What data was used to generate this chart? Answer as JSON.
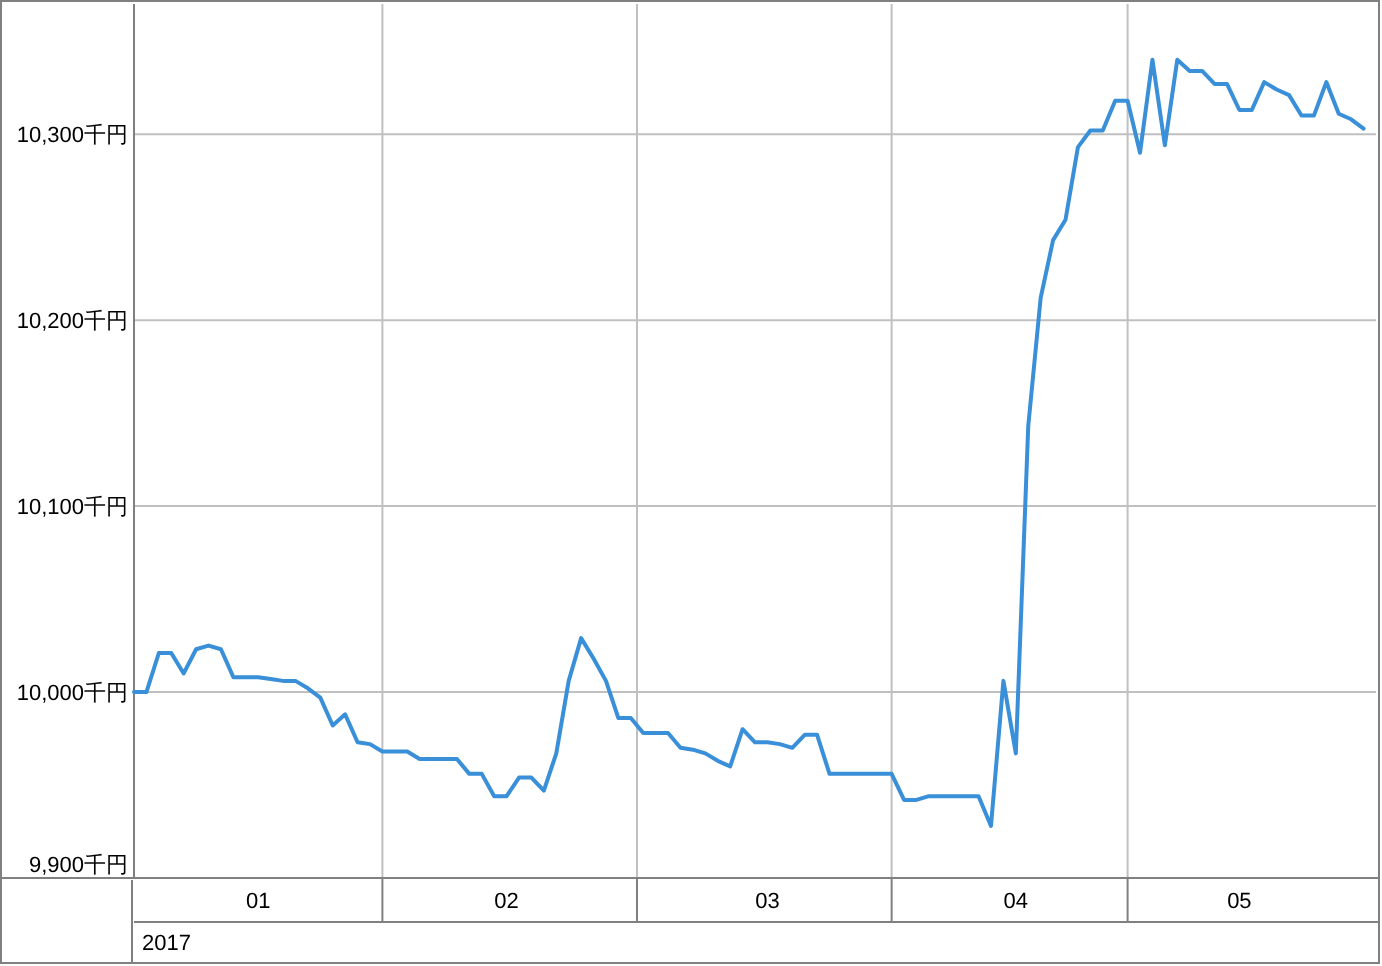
{
  "chart_data": {
    "type": "line",
    "categories": [
      null,
      null,
      null,
      null,
      null,
      null,
      null,
      null,
      null,
      null,
      "01",
      null,
      null,
      null,
      null,
      null,
      null,
      null,
      null,
      null,
      null,
      null,
      null,
      null,
      null,
      null,
      null,
      null,
      null,
      null,
      "02",
      null,
      null,
      null,
      null,
      null,
      null,
      null,
      null,
      null,
      null,
      null,
      null,
      null,
      null,
      null,
      null,
      null,
      null,
      null,
      null,
      "03",
      null,
      null,
      null,
      null,
      null,
      null,
      null,
      null,
      null,
      null,
      null,
      null,
      null,
      null,
      null,
      null,
      null,
      null,
      null,
      "04",
      null,
      null,
      null,
      null,
      null,
      null,
      null,
      null,
      null,
      null,
      null,
      null,
      null,
      null,
      null,
      null,
      null,
      "05",
      null,
      null,
      null,
      null,
      null,
      null,
      null,
      null,
      null,
      null
    ],
    "series": [
      {
        "color": "#3a8fd9",
        "values": [
          10000,
          10000,
          10021,
          10021,
          10010,
          10023,
          10025,
          10023,
          10008,
          10008,
          10008,
          10007,
          10006,
          10006,
          10002,
          9997,
          9982,
          9988,
          9973,
          9972,
          9968,
          9968,
          9968,
          9964,
          9964,
          9964,
          9964,
          9956,
          9956,
          9944,
          9944,
          9954,
          9954,
          9947,
          9967,
          10006,
          10029,
          10018,
          10006,
          9986,
          9986,
          9978,
          9978,
          9978,
          9970,
          9969,
          9967,
          9963,
          9960,
          9980,
          9973,
          9973,
          9972,
          9970,
          9977,
          9977,
          9956,
          9956,
          9956,
          9956,
          9956,
          9956,
          9942,
          9942,
          9944,
          9944,
          9944,
          9944,
          9944,
          9928,
          10006,
          9967,
          10143,
          10212,
          10243,
          10254,
          10293,
          10302,
          10302,
          10318,
          10318,
          10290,
          10340,
          10294,
          10340,
          10334,
          10334,
          10327,
          10327,
          10313,
          10313,
          10328,
          10324,
          10321,
          10310,
          10310,
          10328,
          10311,
          10308,
          10303
        ]
      }
    ],
    "xlabel": "2017",
    "ylim": [
      9900,
      10370
    ],
    "yticks": [
      {
        "value": 9900,
        "label": "9,900千円"
      },
      {
        "value": 10000,
        "label": "10,000千円"
      },
      {
        "value": 10100,
        "label": "10,100千円"
      },
      {
        "value": 10200,
        "label": "10,200千円"
      },
      {
        "value": 10300,
        "label": "10,300千円"
      }
    ],
    "grid": true
  }
}
